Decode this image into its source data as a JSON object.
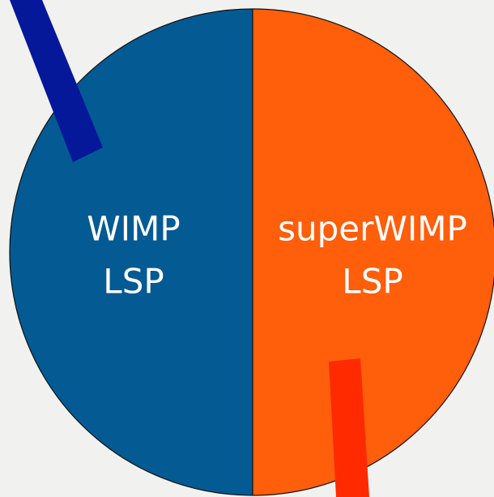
{
  "nodes": [
    {
      "lines": [
        "WIMP",
        "LSP"
      ]
    },
    {
      "lines": [
        "superWIMP",
        "LSP"
      ]
    }
  ]
}
